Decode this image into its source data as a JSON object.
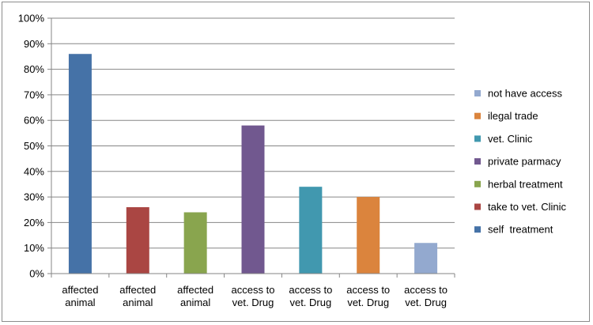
{
  "chart_data": {
    "type": "bar",
    "categories": [
      [
        "affected",
        "animal"
      ],
      [
        "affected",
        "animal"
      ],
      [
        "affected",
        "animal"
      ],
      [
        "access to",
        "vet. Drug"
      ],
      [
        "access to",
        "vet. Drug"
      ],
      [
        "access to",
        "vet. Drug"
      ],
      [
        "access to",
        "vet. Drug"
      ]
    ],
    "series": [
      {
        "name": "self  treatment",
        "color": "#4572A7",
        "index": 0,
        "value": 86
      },
      {
        "name": "take to vet. Clinic",
        "color": "#AA4643",
        "index": 1,
        "value": 26
      },
      {
        "name": "herbal treatment",
        "color": "#89A54E",
        "index": 2,
        "value": 24
      },
      {
        "name": "private parmacy",
        "color": "#71588F",
        "index": 3,
        "value": 58
      },
      {
        "name": "vet. Clinic",
        "color": "#4198AF",
        "index": 4,
        "value": 34
      },
      {
        "name": "ilegal trade",
        "color": "#DB843D",
        "index": 5,
        "value": 30
      },
      {
        "name": "not have access",
        "color": "#93A9CF",
        "index": 6,
        "value": 12
      }
    ],
    "legend_order": [
      6,
      5,
      4,
      3,
      2,
      1,
      0
    ],
    "y_ticks": [
      "0%",
      "10%",
      "20%",
      "30%",
      "40%",
      "50%",
      "60%",
      "70%",
      "80%",
      "90%",
      "100%"
    ],
    "ylim": [
      0,
      100
    ],
    "grid": true,
    "legend_position": "right",
    "title": "",
    "xlabel": "",
    "ylabel": ""
  }
}
